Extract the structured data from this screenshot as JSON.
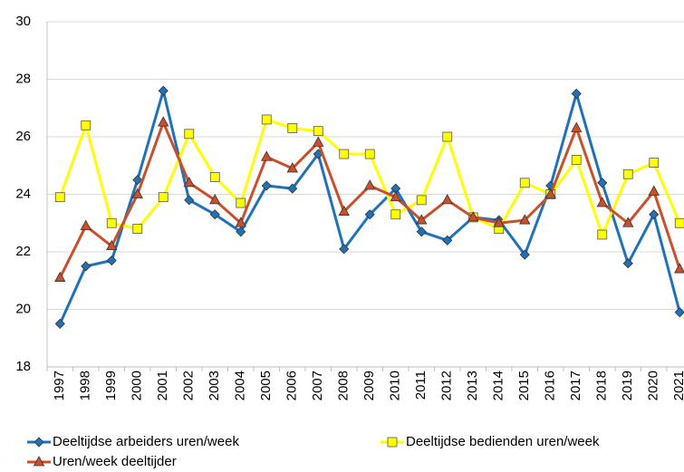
{
  "chart_data": {
    "type": "line",
    "categories": [
      "1997",
      "1998",
      "1999",
      "2000",
      "2001",
      "2002",
      "2003",
      "2004",
      "2005",
      "2006",
      "2007",
      "2008",
      "2009",
      "2010",
      "2011",
      "2012",
      "2013",
      "2014",
      "2015",
      "2016",
      "2017",
      "2018",
      "2019",
      "2020",
      "2021"
    ],
    "series": [
      {
        "name": "Deeltijdse arbeiders uren/week",
        "color": "#1f72b8",
        "marker": "diamond",
        "values": [
          19.5,
          21.5,
          21.7,
          24.5,
          27.6,
          23.8,
          23.3,
          22.7,
          24.3,
          24.2,
          25.4,
          22.1,
          23.3,
          24.2,
          22.7,
          22.4,
          23.2,
          23.1,
          21.9,
          24.3,
          27.5,
          24.4,
          21.6,
          23.3,
          19.9
        ]
      },
      {
        "name": "Deeltijdse bedienden uren/week",
        "color": "#ffff00",
        "marker": "square",
        "values": [
          23.9,
          26.4,
          23.0,
          22.8,
          23.9,
          26.1,
          24.6,
          23.7,
          26.6,
          26.3,
          26.2,
          25.4,
          25.4,
          23.3,
          23.8,
          26.0,
          23.2,
          22.8,
          24.4,
          24.0,
          25.2,
          22.6,
          24.7,
          25.1,
          23.0
        ]
      },
      {
        "name": "Uren/week deeltijder",
        "color": "#c8502a",
        "marker": "triangle",
        "values": [
          21.1,
          22.9,
          22.2,
          24.0,
          26.5,
          24.4,
          23.8,
          23.0,
          25.3,
          24.9,
          25.8,
          23.4,
          24.3,
          23.9,
          23.1,
          23.8,
          23.2,
          23.0,
          23.1,
          24.0,
          26.3,
          23.7,
          23.0,
          24.1,
          21.4
        ]
      }
    ],
    "ylim": [
      18,
      30
    ],
    "yticks": [
      18,
      20,
      22,
      24,
      26,
      28,
      30
    ],
    "grid": true,
    "legend": "bottom"
  }
}
